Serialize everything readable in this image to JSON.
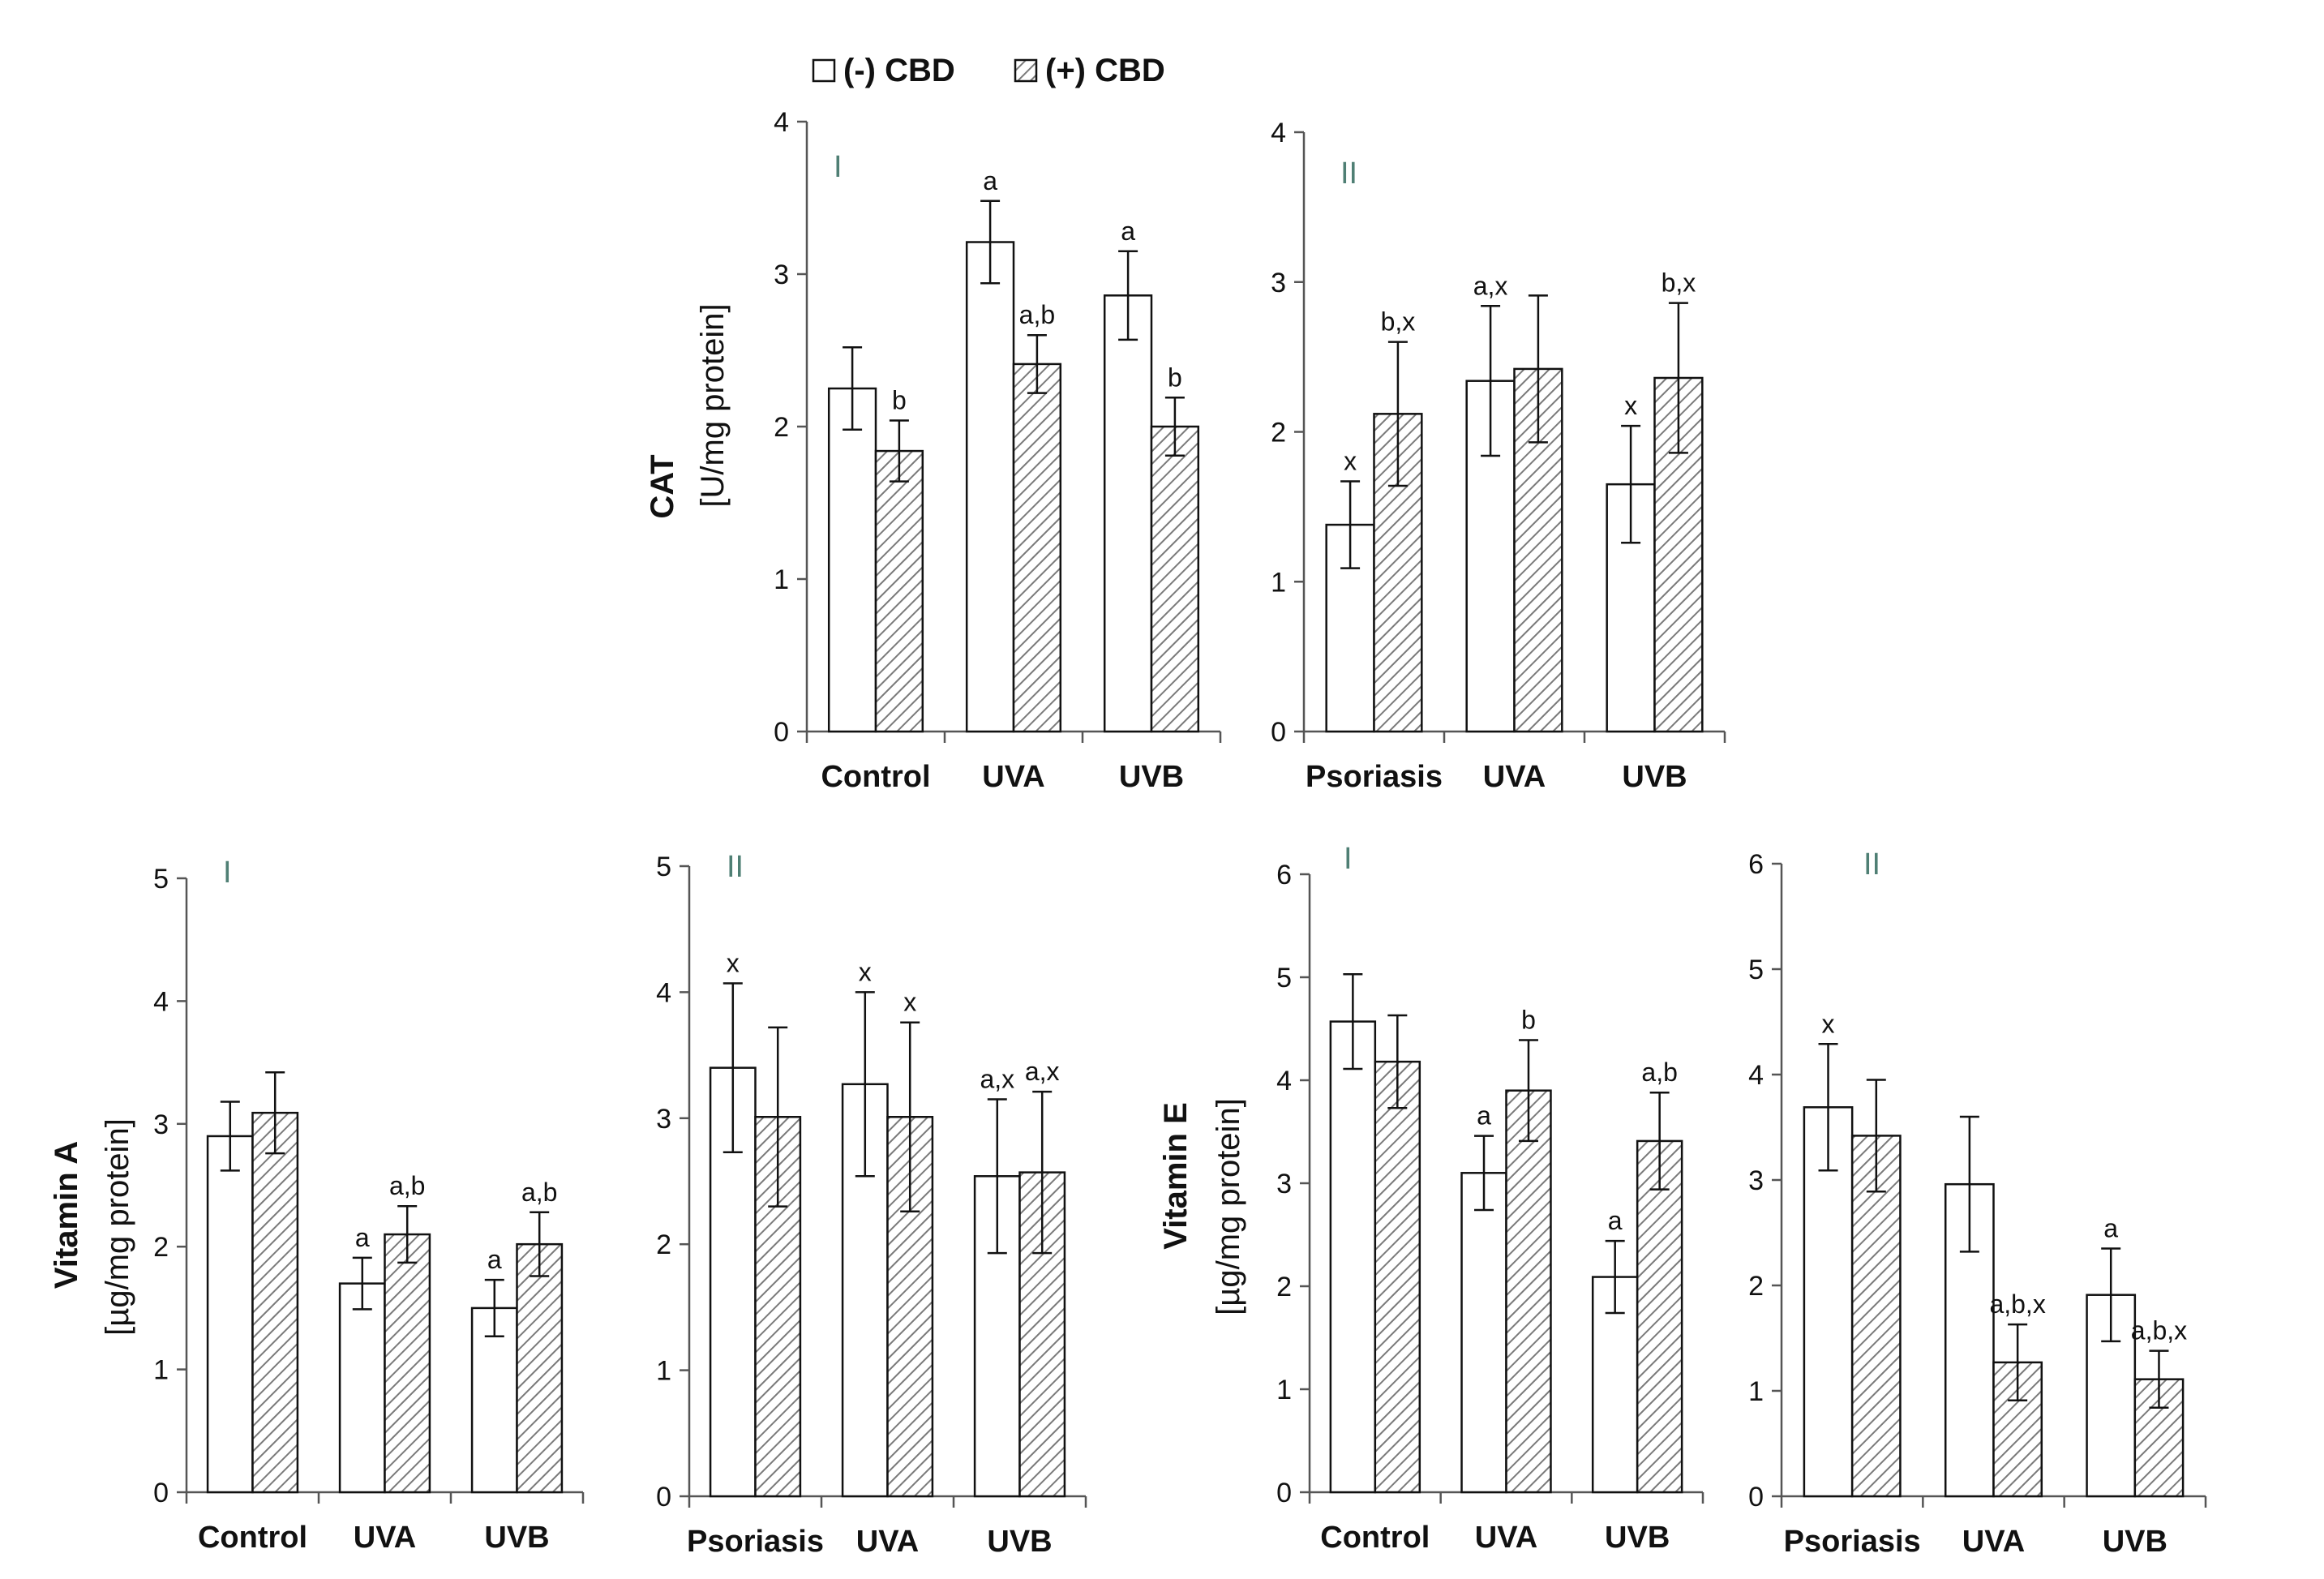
{
  "colors": {
    "axis": "#555555",
    "bar_stroke": "#111111",
    "hatch": "#7a7a7a",
    "roman": "#4f7f74",
    "text": "#111111"
  },
  "legend": {
    "neg_label": "(-) CBD",
    "pos_label": "(+) CBD"
  },
  "chart_data": [
    {
      "id": "cat-I",
      "type": "bar",
      "roman": "I",
      "ylabel_bold": "CAT",
      "ylabel_unit": "[U/mg protein]",
      "categories": [
        "Control",
        "UVA",
        "UVB"
      ],
      "ylim": [
        0,
        4
      ],
      "yticks": [
        0,
        1,
        2,
        3,
        4
      ],
      "series": [
        {
          "name": "(-) CBD",
          "values": [
            2.25,
            3.21,
            2.86
          ],
          "errors": [
            0.27,
            0.27,
            0.29
          ],
          "labels": [
            "",
            "a",
            "a"
          ]
        },
        {
          "name": "(+) CBD",
          "values": [
            1.84,
            2.41,
            2.0
          ],
          "errors": [
            0.2,
            0.19,
            0.19
          ],
          "labels": [
            "b",
            "a,b",
            "b"
          ]
        }
      ]
    },
    {
      "id": "cat-II",
      "type": "bar",
      "roman": "II",
      "ylabel_bold": "",
      "ylabel_unit": "",
      "categories": [
        "Psoriasis",
        "UVA",
        "UVB"
      ],
      "ylim": [
        0,
        4
      ],
      "yticks": [
        0,
        1,
        2,
        3,
        4
      ],
      "series": [
        {
          "name": "(-) CBD",
          "values": [
            1.38,
            2.34,
            1.65
          ],
          "errors": [
            0.29,
            0.5,
            0.39
          ],
          "labels": [
            "x",
            "a,x",
            "x"
          ]
        },
        {
          "name": "(+) CBD",
          "values": [
            2.12,
            2.42,
            2.36
          ],
          "errors": [
            0.48,
            0.49,
            0.5
          ],
          "labels": [
            "b,x",
            "",
            "b,x"
          ]
        }
      ]
    },
    {
      "id": "vita-I",
      "type": "bar",
      "roman": "I",
      "ylabel_bold": "Vitamin A",
      "ylabel_unit": "[µg/mg protein]",
      "categories": [
        "Control",
        "UVA",
        "UVB"
      ],
      "ylim": [
        0,
        5
      ],
      "yticks": [
        0,
        1,
        2,
        3,
        4,
        5
      ],
      "series": [
        {
          "name": "(-) CBD",
          "values": [
            2.9,
            1.7,
            1.5
          ],
          "errors": [
            0.28,
            0.21,
            0.23
          ],
          "labels": [
            "",
            "a",
            "a"
          ]
        },
        {
          "name": "(+) CBD",
          "values": [
            3.09,
            2.1,
            2.02
          ],
          "errors": [
            0.33,
            0.23,
            0.26
          ],
          "labels": [
            "",
            "a,b",
            "a,b"
          ]
        }
      ]
    },
    {
      "id": "vita-II",
      "type": "bar",
      "roman": "II",
      "ylabel_bold": "",
      "ylabel_unit": "",
      "categories": [
        "Psoriasis",
        "UVA",
        "UVB"
      ],
      "ylim": [
        0,
        5
      ],
      "yticks": [
        0,
        1,
        2,
        3,
        4,
        5
      ],
      "series": [
        {
          "name": "(-) CBD",
          "values": [
            3.4,
            3.27,
            2.54
          ],
          "errors": [
            0.67,
            0.73,
            0.61
          ],
          "labels": [
            "x",
            "x",
            "a,x"
          ]
        },
        {
          "name": "(+) CBD",
          "values": [
            3.01,
            3.01,
            2.57
          ],
          "errors": [
            0.71,
            0.75,
            0.64
          ],
          "labels": [
            "",
            "x",
            "a,x"
          ]
        }
      ]
    },
    {
      "id": "vite-I",
      "type": "bar",
      "roman": "I",
      "ylabel_bold": "Vitamin E",
      "ylabel_unit": "[µg/mg protein]",
      "categories": [
        "Control",
        "UVA",
        "UVB"
      ],
      "ylim": [
        0,
        6
      ],
      "yticks": [
        0,
        1,
        2,
        3,
        4,
        5,
        6
      ],
      "series": [
        {
          "name": "(-) CBD",
          "values": [
            4.57,
            3.1,
            2.09
          ],
          "errors": [
            0.46,
            0.36,
            0.35
          ],
          "labels": [
            "",
            "a",
            "a"
          ]
        },
        {
          "name": "(+) CBD",
          "values": [
            4.18,
            3.9,
            3.41
          ],
          "errors": [
            0.45,
            0.49,
            0.47
          ],
          "labels": [
            "",
            "b",
            "a,b"
          ]
        }
      ]
    },
    {
      "id": "vite-II",
      "type": "bar",
      "roman": "II",
      "ylabel_bold": "",
      "ylabel_unit": "",
      "categories": [
        "Psoriasis",
        "UVA",
        "UVB"
      ],
      "ylim": [
        0,
        6
      ],
      "yticks": [
        0,
        1,
        2,
        3,
        4,
        5,
        6
      ],
      "series": [
        {
          "name": "(-) CBD",
          "values": [
            3.69,
            2.96,
            1.91
          ],
          "errors": [
            0.6,
            0.64,
            0.44
          ],
          "labels": [
            "x",
            "",
            "a"
          ]
        },
        {
          "name": "(+) CBD",
          "values": [
            3.42,
            1.27,
            1.11
          ],
          "errors": [
            0.53,
            0.36,
            0.27
          ],
          "labels": [
            "",
            "a,b,x",
            "a,b,x"
          ]
        }
      ]
    }
  ]
}
